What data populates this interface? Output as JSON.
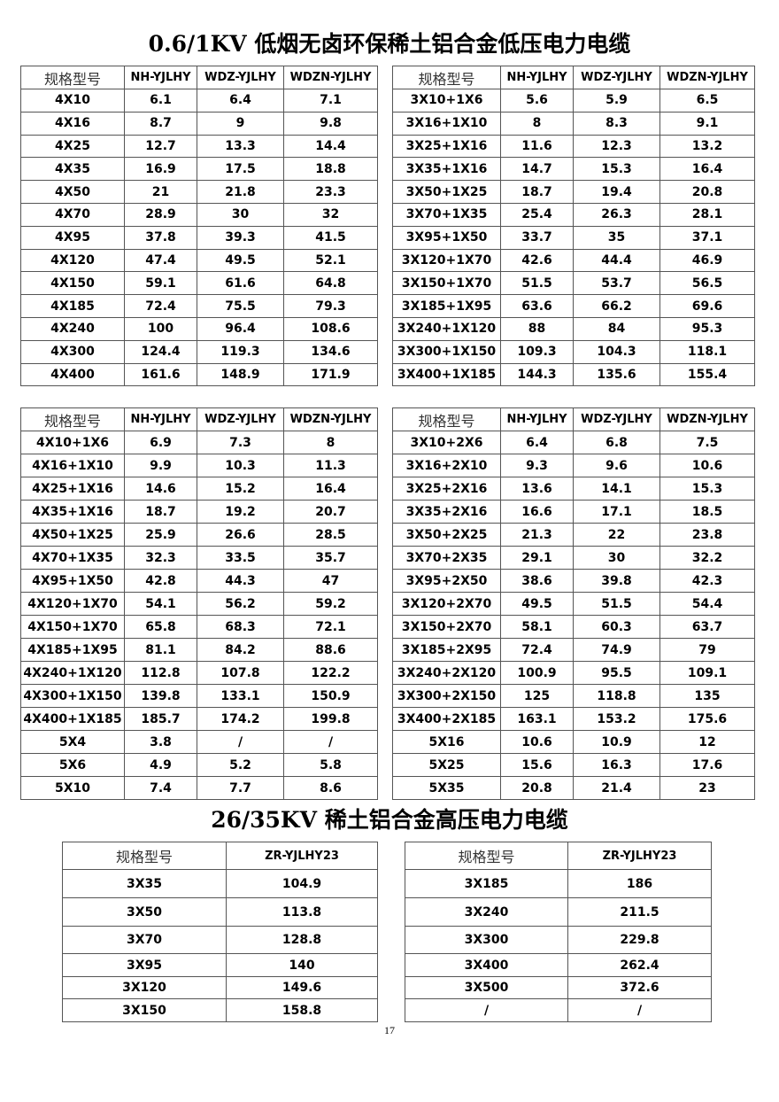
{
  "section1": {
    "title": "0.6/1KV 低烟无卤环保稀土铝合金低压电力电缆",
    "header": [
      "规格型号",
      "NH-YJLHY",
      "WDZ-YJLHY",
      "WDZN-YJLHY"
    ],
    "table_a": [
      [
        "4X10",
        "6.1",
        "6.4",
        "7.1"
      ],
      [
        "4X16",
        "8.7",
        "9",
        "9.8"
      ],
      [
        "4X25",
        "12.7",
        "13.3",
        "14.4"
      ],
      [
        "4X35",
        "16.9",
        "17.5",
        "18.8"
      ],
      [
        "4X50",
        "21",
        "21.8",
        "23.3"
      ],
      [
        "4X70",
        "28.9",
        "30",
        "32"
      ],
      [
        "4X95",
        "37.8",
        "39.3",
        "41.5"
      ],
      [
        "4X120",
        "47.4",
        "49.5",
        "52.1"
      ],
      [
        "4X150",
        "59.1",
        "61.6",
        "64.8"
      ],
      [
        "4X185",
        "72.4",
        "75.5",
        "79.3"
      ],
      [
        "4X240",
        "100",
        "96.4",
        "108.6"
      ],
      [
        "4X300",
        "124.4",
        "119.3",
        "134.6"
      ],
      [
        "4X400",
        "161.6",
        "148.9",
        "171.9"
      ]
    ],
    "table_b": [
      [
        "3X10+1X6",
        "5.6",
        "5.9",
        "6.5"
      ],
      [
        "3X16+1X10",
        "8",
        "8.3",
        "9.1"
      ],
      [
        "3X25+1X16",
        "11.6",
        "12.3",
        "13.2"
      ],
      [
        "3X35+1X16",
        "14.7",
        "15.3",
        "16.4"
      ],
      [
        "3X50+1X25",
        "18.7",
        "19.4",
        "20.8"
      ],
      [
        "3X70+1X35",
        "25.4",
        "26.3",
        "28.1"
      ],
      [
        "3X95+1X50",
        "33.7",
        "35",
        "37.1"
      ],
      [
        "3X120+1X70",
        "42.6",
        "44.4",
        "46.9"
      ],
      [
        "3X150+1X70",
        "51.5",
        "53.7",
        "56.5"
      ],
      [
        "3X185+1X95",
        "63.6",
        "66.2",
        "69.6"
      ],
      [
        "3X240+1X120",
        "88",
        "84",
        "95.3"
      ],
      [
        "3X300+1X150",
        "109.3",
        "104.3",
        "118.1"
      ],
      [
        "3X400+1X185",
        "144.3",
        "135.6",
        "155.4"
      ]
    ],
    "table_c": [
      [
        "4X10+1X6",
        "6.9",
        "7.3",
        "8"
      ],
      [
        "4X16+1X10",
        "9.9",
        "10.3",
        "11.3"
      ],
      [
        "4X25+1X16",
        "14.6",
        "15.2",
        "16.4"
      ],
      [
        "4X35+1X16",
        "18.7",
        "19.2",
        "20.7"
      ],
      [
        "4X50+1X25",
        "25.9",
        "26.6",
        "28.5"
      ],
      [
        "4X70+1X35",
        "32.3",
        "33.5",
        "35.7"
      ],
      [
        "4X95+1X50",
        "42.8",
        "44.3",
        "47"
      ],
      [
        "4X120+1X70",
        "54.1",
        "56.2",
        "59.2"
      ],
      [
        "4X150+1X70",
        "65.8",
        "68.3",
        "72.1"
      ],
      [
        "4X185+1X95",
        "81.1",
        "84.2",
        "88.6"
      ],
      [
        "4X240+1X120",
        "112.8",
        "107.8",
        "122.2"
      ],
      [
        "4X300+1X150",
        "139.8",
        "133.1",
        "150.9"
      ],
      [
        "4X400+1X185",
        "185.7",
        "174.2",
        "199.8"
      ],
      [
        "5X4",
        "3.8",
        "/",
        "/"
      ],
      [
        "5X6",
        "4.9",
        "5.2",
        "5.8"
      ],
      [
        "5X10",
        "7.4",
        "7.7",
        "8.6"
      ]
    ],
    "table_d": [
      [
        "3X10+2X6",
        "6.4",
        "6.8",
        "7.5"
      ],
      [
        "3X16+2X10",
        "9.3",
        "9.6",
        "10.6"
      ],
      [
        "3X25+2X16",
        "13.6",
        "14.1",
        "15.3"
      ],
      [
        "3X35+2X16",
        "16.6",
        "17.1",
        "18.5"
      ],
      [
        "3X50+2X25",
        "21.3",
        "22",
        "23.8"
      ],
      [
        "3X70+2X35",
        "29.1",
        "30",
        "32.2"
      ],
      [
        "3X95+2X50",
        "38.6",
        "39.8",
        "42.3"
      ],
      [
        "3X120+2X70",
        "49.5",
        "51.5",
        "54.4"
      ],
      [
        "3X150+2X70",
        "58.1",
        "60.3",
        "63.7"
      ],
      [
        "3X185+2X95",
        "72.4",
        "74.9",
        "79"
      ],
      [
        "3X240+2X120",
        "100.9",
        "95.5",
        "109.1"
      ],
      [
        "3X300+2X150",
        "125",
        "118.8",
        "135"
      ],
      [
        "3X400+2X185",
        "163.1",
        "153.2",
        "175.6"
      ],
      [
        "5X16",
        "10.6",
        "10.9",
        "12"
      ],
      [
        "5X25",
        "15.6",
        "16.3",
        "17.6"
      ],
      [
        "5X35",
        "20.8",
        "21.4",
        "23"
      ]
    ]
  },
  "section2": {
    "title": "26/35KV 稀土铝合金高压电力电缆",
    "header": [
      "规格型号",
      "ZR-YJLHY23"
    ],
    "table_a": [
      [
        "3X35",
        "104.9"
      ],
      [
        "3X50",
        "113.8"
      ],
      [
        "3X70",
        "128.8"
      ],
      [
        "3X95",
        "140"
      ],
      [
        "3X120",
        "149.6"
      ],
      [
        "3X150",
        "158.8"
      ]
    ],
    "table_b": [
      [
        "3X185",
        "186"
      ],
      [
        "3X240",
        "211.5"
      ],
      [
        "3X300",
        "229.8"
      ],
      [
        "3X400",
        "262.4"
      ],
      [
        "3X500",
        "372.6"
      ],
      [
        "/",
        "/"
      ]
    ]
  },
  "page_number": "17"
}
